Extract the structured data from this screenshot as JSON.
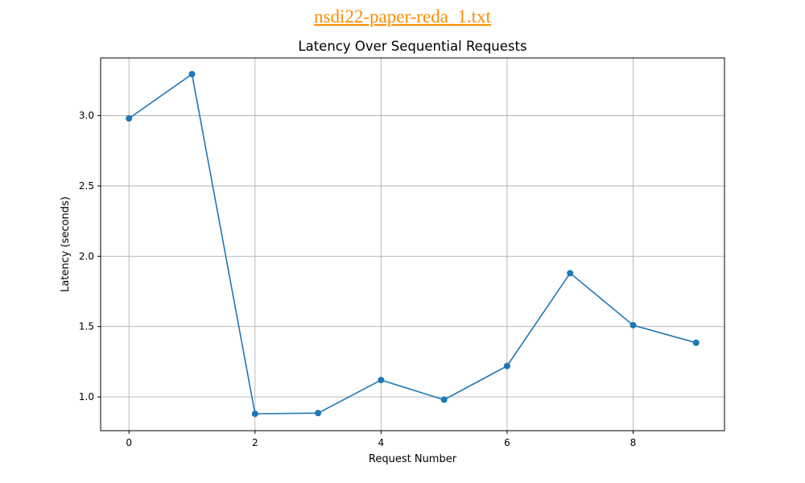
{
  "header": {
    "file_link": "nsdi22-paper-reda_1.txt",
    "link_color": "#ff8c00"
  },
  "chart_data": {
    "type": "line",
    "title": "Latency Over Sequential Requests",
    "xlabel": "Request Number",
    "ylabel": "Latency (seconds)",
    "x": [
      0,
      1,
      2,
      3,
      4,
      5,
      6,
      7,
      8,
      9
    ],
    "series": [
      {
        "values": [
          2.98,
          3.295,
          0.88,
          0.885,
          1.12,
          0.98,
          1.22,
          1.88,
          1.51,
          1.385
        ],
        "color": "#1f77b4",
        "marker": "circle"
      }
    ],
    "xlim": [
      -0.45,
      9.45
    ],
    "ylim": [
      0.76,
      3.41
    ],
    "xticks": [
      0,
      2,
      4,
      6,
      8
    ],
    "yticks": [
      1.0,
      1.5,
      2.0,
      2.5,
      3.0
    ],
    "xtick_labels": [
      "0",
      "2",
      "4",
      "6",
      "8"
    ],
    "ytick_labels": [
      "1.0",
      "1.5",
      "2.0",
      "2.5",
      "3.0"
    ],
    "grid": true
  }
}
